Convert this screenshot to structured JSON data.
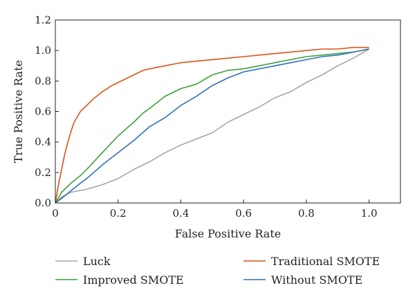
{
  "chart_data": {
    "type": "line",
    "title": "",
    "xlabel": "False Positive Rate",
    "ylabel": "True Positive Rate",
    "xlim": [
      0,
      1.1
    ],
    "ylim": [
      0,
      1.2
    ],
    "xticks": [
      "0",
      "0.2",
      "0.4",
      "0.6",
      "0.8",
      "1.0"
    ],
    "yticks": [
      "0.0",
      "0.2",
      "0.4",
      "0.6",
      "0.8",
      "1.0",
      "1.2"
    ],
    "grid": false,
    "legend_position": "bottom",
    "series": [
      {
        "name": "Luck",
        "color": "#a6a6a6",
        "x": [
          0,
          0.02,
          0.05,
          0.1,
          0.15,
          0.2,
          0.25,
          0.3,
          0.35,
          0.4,
          0.45,
          0.5,
          0.55,
          0.6,
          0.65,
          0.7,
          0.75,
          0.8,
          0.85,
          0.9,
          0.95,
          1.0
        ],
        "y": [
          0,
          0.04,
          0.07,
          0.09,
          0.12,
          0.16,
          0.22,
          0.27,
          0.33,
          0.38,
          0.42,
          0.46,
          0.53,
          0.58,
          0.63,
          0.69,
          0.73,
          0.79,
          0.84,
          0.9,
          0.95,
          1.01
        ]
      },
      {
        "name": "Traditional SMOTE",
        "color": "#d95319",
        "x": [
          0,
          0.01,
          0.02,
          0.03,
          0.04,
          0.05,
          0.06,
          0.08,
          0.1,
          0.12,
          0.15,
          0.18,
          0.2,
          0.25,
          0.28,
          0.3,
          0.35,
          0.4,
          0.45,
          0.5,
          0.55,
          0.6,
          0.65,
          0.7,
          0.75,
          0.8,
          0.85,
          0.9,
          0.95,
          1.0
        ],
        "y": [
          0,
          0.12,
          0.22,
          0.32,
          0.4,
          0.47,
          0.53,
          0.6,
          0.64,
          0.68,
          0.73,
          0.77,
          0.79,
          0.84,
          0.87,
          0.88,
          0.9,
          0.92,
          0.93,
          0.94,
          0.95,
          0.96,
          0.97,
          0.98,
          0.99,
          1.0,
          1.01,
          1.01,
          1.02,
          1.02
        ]
      },
      {
        "name": "Improved SMOTE",
        "color": "#3aa03a",
        "x": [
          0,
          0.02,
          0.05,
          0.08,
          0.1,
          0.15,
          0.2,
          0.25,
          0.28,
          0.3,
          0.35,
          0.4,
          0.45,
          0.5,
          0.55,
          0.6,
          0.65,
          0.7,
          0.75,
          0.8,
          0.85,
          0.9,
          0.95,
          1.0
        ],
        "y": [
          0,
          0.07,
          0.13,
          0.18,
          0.22,
          0.33,
          0.44,
          0.53,
          0.59,
          0.62,
          0.7,
          0.75,
          0.78,
          0.84,
          0.87,
          0.88,
          0.9,
          0.92,
          0.94,
          0.96,
          0.97,
          0.98,
          0.99,
          1.01
        ]
      },
      {
        "name": "Without SMOTE",
        "color": "#2f6fb5",
        "x": [
          0,
          0.02,
          0.05,
          0.08,
          0.1,
          0.15,
          0.2,
          0.25,
          0.3,
          0.35,
          0.4,
          0.45,
          0.5,
          0.55,
          0.6,
          0.65,
          0.7,
          0.75,
          0.8,
          0.85,
          0.9,
          0.95,
          1.0
        ],
        "y": [
          0,
          0.03,
          0.08,
          0.13,
          0.16,
          0.25,
          0.33,
          0.41,
          0.5,
          0.56,
          0.64,
          0.7,
          0.77,
          0.82,
          0.86,
          0.88,
          0.9,
          0.92,
          0.94,
          0.96,
          0.97,
          0.99,
          1.01
        ]
      }
    ]
  },
  "legend": {
    "items": [
      {
        "label": "Luck",
        "color": "#a6a6a6"
      },
      {
        "label": "Traditional SMOTE",
        "color": "#d95319"
      },
      {
        "label": "Improved SMOTE",
        "color": "#3aa03a"
      },
      {
        "label": "Without SMOTE",
        "color": "#2f6fb5"
      }
    ]
  }
}
